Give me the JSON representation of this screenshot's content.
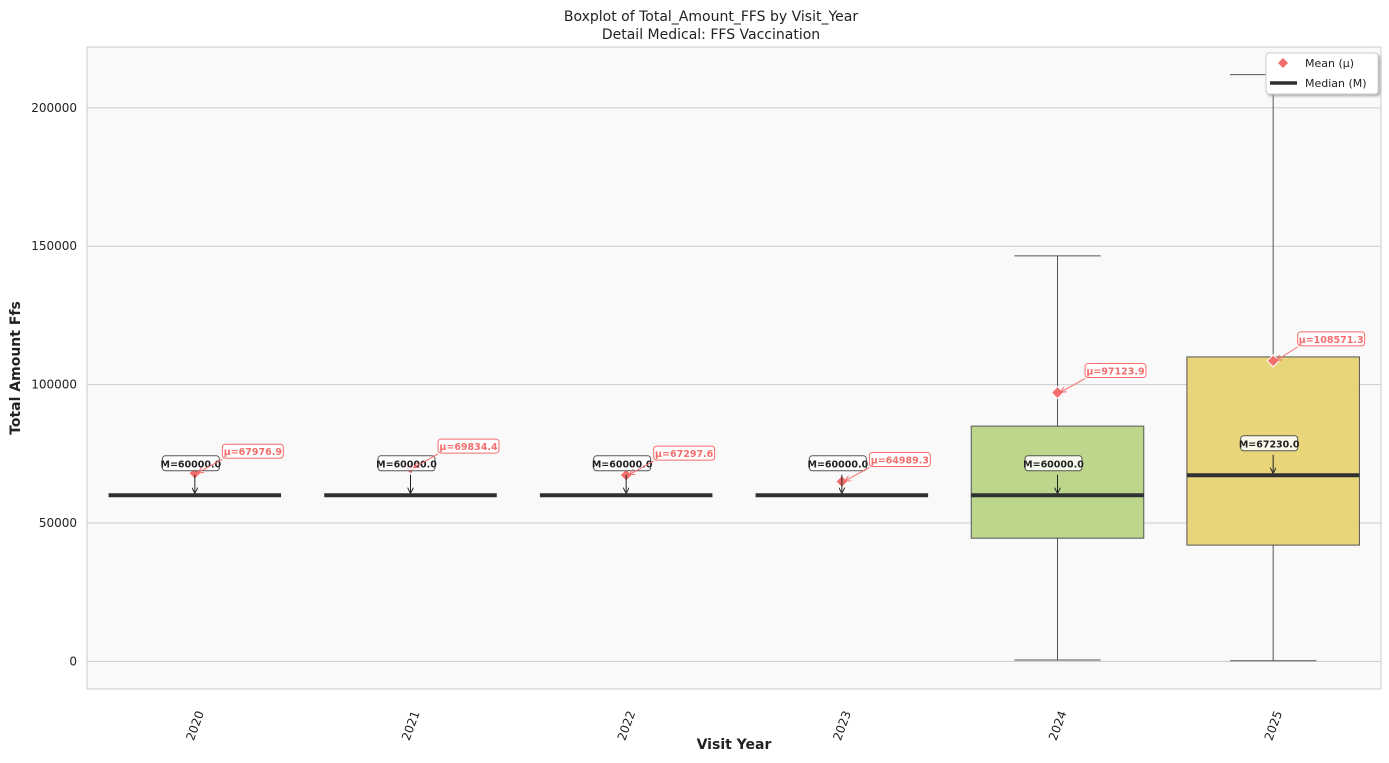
{
  "chart_data": {
    "type": "box",
    "title": "Boxplot of Total_Amount_FFS by Visit_Year",
    "subtitle": "Detail Medical: FFS Vaccination",
    "xlabel": "Visit Year",
    "ylabel": "Total Amount Ffs",
    "ylim": [
      -10000,
      222000
    ],
    "yticks": [
      0,
      50000,
      100000,
      150000,
      200000
    ],
    "ytick_labels": [
      "0",
      "50000",
      "100000",
      "150000",
      "200000"
    ],
    "grid": true,
    "legend_position": "top-right",
    "colors": {
      "background": "#f9f9f9",
      "mean": "#f46d6d",
      "median": "#2f3033",
      "grid": "#cccccc"
    },
    "legend": [
      {
        "label": "Mean (μ)",
        "marker": "diamond"
      },
      {
        "label": "Median (M)",
        "marker": "line"
      }
    ],
    "categories": [
      "2020",
      "2021",
      "2022",
      "2023",
      "2024",
      "2025"
    ],
    "boxes": [
      {
        "category": "2020",
        "whisker_low": 60000,
        "q1": 60000,
        "median": 60000,
        "q3": 60000,
        "whisker_high": 60000,
        "mean": 67976.9,
        "median_label": "M=60000.0",
        "mean_label": "μ=67976.9",
        "color": ""
      },
      {
        "category": "2021",
        "whisker_low": 60000,
        "q1": 60000,
        "median": 60000,
        "q3": 60000,
        "whisker_high": 60000,
        "mean": 69834.4,
        "median_label": "M=60000.0",
        "mean_label": "μ=69834.4",
        "color": ""
      },
      {
        "category": "2022",
        "whisker_low": 60000,
        "q1": 60000,
        "median": 60000,
        "q3": 60000,
        "whisker_high": 60000,
        "mean": 67297.6,
        "median_label": "M=60000.0",
        "mean_label": "μ=67297.6",
        "color": ""
      },
      {
        "category": "2023",
        "whisker_low": 60000,
        "q1": 60000,
        "median": 60000,
        "q3": 60000,
        "whisker_high": 60000,
        "mean": 64989.3,
        "median_label": "M=60000.0",
        "mean_label": "μ=64989.3",
        "color": ""
      },
      {
        "category": "2024",
        "whisker_low": 500,
        "q1": 44500,
        "median": 60000,
        "q3": 85000,
        "whisker_high": 146500,
        "mean": 97123.9,
        "median_label": "M=60000.0",
        "mean_label": "μ=97123.9",
        "color": "#bcd68c"
      },
      {
        "category": "2025",
        "whisker_low": 200,
        "q1": 42000,
        "median": 67230,
        "q3": 110000,
        "whisker_high": 212000,
        "mean": 108571.3,
        "median_label": "M=67230.0",
        "mean_label": "μ=108571.3",
        "color": "#e8d57a"
      }
    ]
  }
}
